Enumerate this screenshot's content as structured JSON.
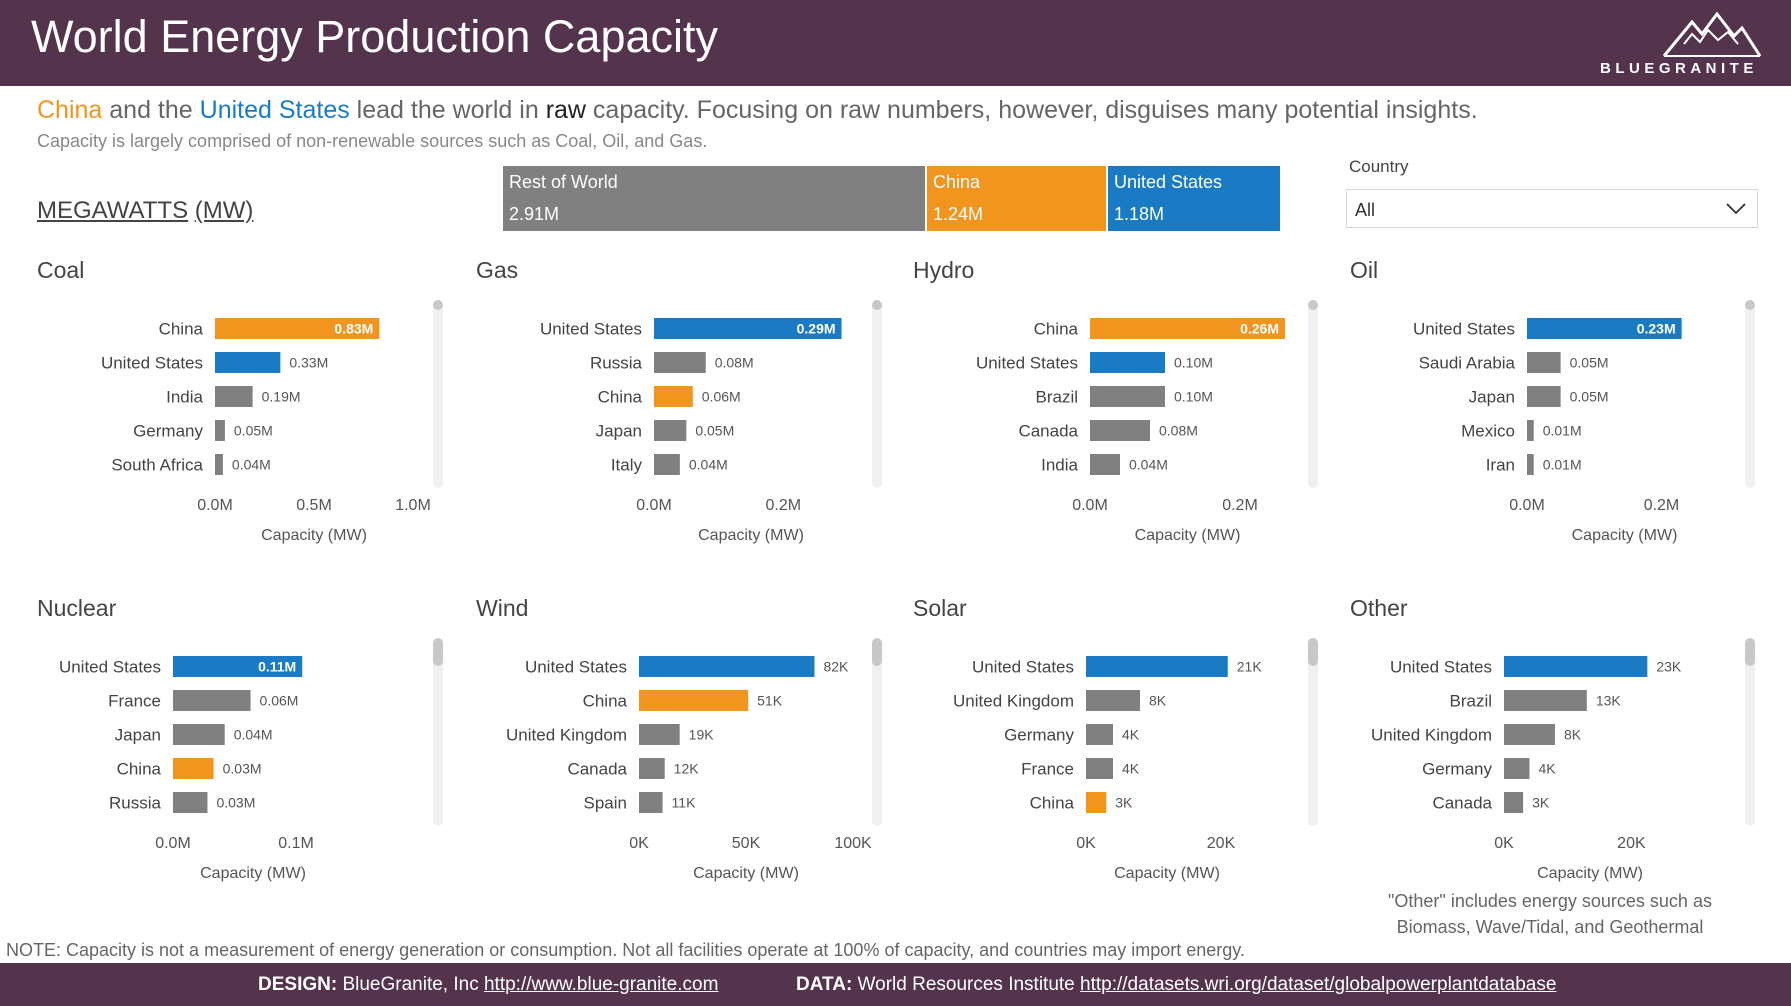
{
  "header": {
    "title": "World Energy Production Capacity",
    "logo_text": "BLUEGRANITE",
    "background": "#54334d"
  },
  "headline": {
    "china": "China",
    "and_the": " and the ",
    "us": "United States",
    "lead": " lead the world in ",
    "raw": "raw",
    "rest": " capacity. Focusing on raw numbers, however, disguises many potential insights."
  },
  "subline": "Capacity is largely comprised of non-renewable sources such as Coal, Oil, and Gas.",
  "units": {
    "megawatts": "MEGAWATTS",
    "mw": "(MW)"
  },
  "colors": {
    "china": "#f2951e",
    "united_states": "#1a7bc4",
    "other": "#808080"
  },
  "total_bar": {
    "segments": [
      {
        "label": "Rest of World",
        "value_label": "2.91M",
        "value": 2.91,
        "color": "#808080"
      },
      {
        "label": "China",
        "value_label": "1.24M",
        "value": 1.24,
        "color": "#f2951e"
      },
      {
        "label": "United States",
        "value_label": "1.18M",
        "value": 1.18,
        "color": "#1a7bc4"
      }
    ]
  },
  "filter": {
    "label": "Country",
    "value": "All"
  },
  "chart_data": [
    {
      "type": "bar",
      "title": "Coal",
      "xlabel": "Capacity (MW)",
      "xlim": [
        0,
        1000000
      ],
      "ticks": [
        {
          "v": 0,
          "label": "0.0M"
        },
        {
          "v": 500000,
          "label": "0.5M"
        },
        {
          "v": 1000000,
          "label": "1.0M"
        }
      ],
      "categories": [
        "China",
        "United States",
        "India",
        "Germany",
        "South Africa"
      ],
      "values": [
        830000,
        330000,
        190000,
        50000,
        40000
      ],
      "labels": [
        "0.83M",
        "0.33M",
        "0.19M",
        "0.05M",
        "0.04M"
      ]
    },
    {
      "type": "bar",
      "title": "Gas",
      "xlabel": "Capacity (MW)",
      "xlim": [
        0,
        300000
      ],
      "ticks": [
        {
          "v": 0,
          "label": "0.0M"
        },
        {
          "v": 200000,
          "label": "0.2M"
        }
      ],
      "categories": [
        "United States",
        "Russia",
        "China",
        "Japan",
        "Italy"
      ],
      "values": [
        290000,
        80000,
        60000,
        50000,
        40000
      ],
      "labels": [
        "0.29M",
        "0.08M",
        "0.06M",
        "0.05M",
        "0.04M"
      ]
    },
    {
      "type": "bar",
      "title": "Hydro",
      "xlabel": "Capacity (MW)",
      "xlim": [
        0,
        260000
      ],
      "ticks": [
        {
          "v": 0,
          "label": "0.0M"
        },
        {
          "v": 200000,
          "label": "0.2M"
        }
      ],
      "categories": [
        "China",
        "United States",
        "Brazil",
        "Canada",
        "India"
      ],
      "values": [
        260000,
        100000,
        100000,
        80000,
        40000
      ],
      "labels": [
        "0.26M",
        "0.10M",
        "0.10M",
        "0.08M",
        "0.04M"
      ]
    },
    {
      "type": "bar",
      "title": "Oil",
      "xlabel": "Capacity (MW)",
      "xlim": [
        0,
        290000
      ],
      "ticks": [
        {
          "v": 0,
          "label": "0.0M"
        },
        {
          "v": 200000,
          "label": "0.2M"
        }
      ],
      "categories": [
        "United States",
        "Saudi Arabia",
        "Japan",
        "Mexico",
        "Iran"
      ],
      "values": [
        230000,
        50000,
        50000,
        10000,
        10000
      ],
      "labels": [
        "0.23M",
        "0.05M",
        "0.05M",
        "0.01M",
        "0.01M"
      ]
    },
    {
      "type": "bar",
      "title": "Nuclear",
      "xlabel": "Capacity (MW)",
      "xlim": [
        0,
        130000
      ],
      "ticks": [
        {
          "v": 0,
          "label": "0.0M"
        },
        {
          "v": 100000,
          "label": "0.1M"
        }
      ],
      "categories": [
        "United States",
        "France",
        "Japan",
        "China",
        "Russia"
      ],
      "values": [
        105000,
        63000,
        42000,
        33000,
        28000
      ],
      "labels": [
        "0.11M",
        "0.06M",
        "0.04M",
        "0.03M",
        "0.03M"
      ]
    },
    {
      "type": "bar",
      "title": "Wind",
      "xlabel": "Capacity (MW)",
      "xlim": [
        0,
        100000
      ],
      "ticks": [
        {
          "v": 0,
          "label": "0K"
        },
        {
          "v": 50000,
          "label": "50K"
        },
        {
          "v": 100000,
          "label": "100K"
        }
      ],
      "categories": [
        "United States",
        "China",
        "United Kingdom",
        "Canada",
        "Spain"
      ],
      "values": [
        82000,
        51000,
        19000,
        12000,
        11000
      ],
      "labels": [
        "82K",
        "51K",
        "19K",
        "12K",
        "11K"
      ]
    },
    {
      "type": "bar",
      "title": "Solar",
      "xlabel": "Capacity (MW)",
      "xlim": [
        0,
        24000
      ],
      "ticks": [
        {
          "v": 0,
          "label": "0K"
        },
        {
          "v": 20000,
          "label": "20K"
        }
      ],
      "categories": [
        "United States",
        "United Kingdom",
        "Germany",
        "France",
        "China"
      ],
      "values": [
        21000,
        8000,
        4000,
        4000,
        3000
      ],
      "labels": [
        "21K",
        "8K",
        "4K",
        "4K",
        "3K"
      ]
    },
    {
      "type": "bar",
      "title": "Other",
      "xlabel": "Capacity (MW)",
      "xlim": [
        0,
        27000
      ],
      "ticks": [
        {
          "v": 0,
          "label": "0K"
        },
        {
          "v": 20000,
          "label": "20K"
        }
      ],
      "categories": [
        "United States",
        "Brazil",
        "United Kingdom",
        "Germany",
        "Canada"
      ],
      "values": [
        22500,
        13000,
        8000,
        4000,
        3000
      ],
      "labels": [
        "23K",
        "13K",
        "8K",
        "4K",
        "3K"
      ]
    }
  ],
  "other_note": "\"Other\" includes energy sources such as Biomass, Wave/Tidal, and Geothermal",
  "note": "NOTE: Capacity is not a measurement of energy generation or consumption. Not all facilities operate at 100% of capacity, and countries may import energy.",
  "footer": {
    "design_label": "DESIGN:",
    "design_text": " BlueGranite, Inc ",
    "design_link": "http://www.blue-granite.com",
    "data_label": "DATA:",
    "data_text": " World Resources Institute ",
    "data_link": "http://datasets.wri.org/dataset/globalpowerplantdatabase"
  }
}
